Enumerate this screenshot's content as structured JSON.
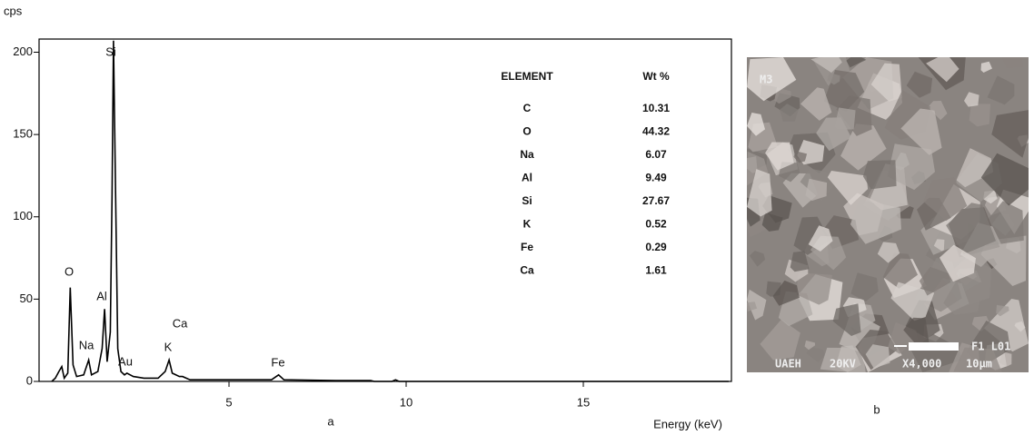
{
  "chart_data": {
    "type": "line",
    "y_label": "cps",
    "x_label": "Energy (keV)",
    "x": [
      0.0,
      0.1,
      0.2,
      0.28,
      0.35,
      0.45,
      0.52,
      0.6,
      0.7,
      0.9,
      1.04,
      1.12,
      1.3,
      1.42,
      1.49,
      1.56,
      1.65,
      1.7,
      1.74,
      1.8,
      1.86,
      1.95,
      2.05,
      2.12,
      2.3,
      2.6,
      3.0,
      3.2,
      3.31,
      3.4,
      3.6,
      3.69,
      3.9,
      4.5,
      6.2,
      6.4,
      6.55,
      8.0,
      9.0,
      9.1,
      9.6,
      9.7,
      9.8,
      19.1
    ],
    "series": [
      {
        "color": "#000000",
        "values": [
          0,
          2,
          6,
          9,
          2,
          5,
          57,
          10,
          3,
          4,
          13,
          4,
          6,
          20,
          44,
          12,
          30,
          112,
          207,
          115,
          20,
          6,
          4,
          5,
          3,
          2,
          2,
          6,
          13,
          5,
          3,
          3,
          1,
          1,
          1,
          4,
          1,
          0.5,
          0.5,
          0,
          0,
          1,
          0,
          0
        ]
      }
    ],
    "peak_labels": [
      "O",
      "Na",
      "Al",
      "Si",
      "Au",
      "K",
      "Ca",
      "Fe"
    ],
    "xlim": [
      -0.36,
      19.18
    ],
    "ylim": [
      0,
      208
    ],
    "xticks": [
      5,
      10,
      15
    ],
    "yticks": [
      0,
      50,
      100,
      150,
      200
    ],
    "panel_label": "a"
  },
  "table": {
    "headers": [
      "ELEMENT",
      "Wt %"
    ],
    "rows": [
      [
        "C",
        10.31
      ],
      [
        "O",
        44.32
      ],
      [
        "Na",
        6.07
      ],
      [
        "Al",
        9.49
      ],
      [
        "Si",
        27.67
      ],
      [
        "K",
        0.52
      ],
      [
        "Fe",
        0.29
      ],
      [
        "Ca",
        1.61
      ]
    ]
  },
  "image": {
    "label": "M3",
    "footer": [
      "UAEH",
      "20KV",
      "X4,000",
      "10µm"
    ],
    "corner": "F1 L01",
    "panel_label": "b"
  }
}
